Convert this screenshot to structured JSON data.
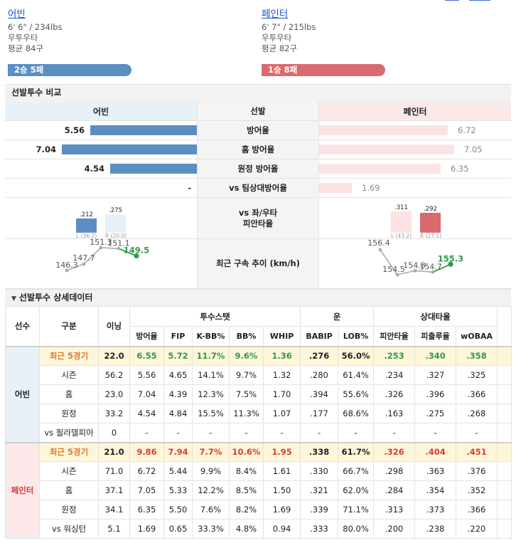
{
  "players": {
    "left": {
      "name": "어빈",
      "size": "6' 6\" / 234lbs",
      "hand": "우투우타",
      "velo": "평균 84구",
      "record": "2승 5패"
    },
    "right": {
      "name": "페인터",
      "size": "6' 7\" / 215lbs",
      "hand": "우투우타",
      "velo": "평균 82구",
      "record": "1승 8패"
    }
  },
  "compare": {
    "title": "선발투수 비교",
    "header": {
      "left": "어빈",
      "mid": "선발",
      "right": "페인터"
    },
    "rows": [
      {
        "label": "방어율",
        "left": "5.56",
        "right": "6.72",
        "lv": 5.56,
        "rv": 6.72
      },
      {
        "label": "홈 방어율",
        "left": "7.04",
        "right": "7.05",
        "lv": 7.04,
        "rv": 7.05
      },
      {
        "label": "원정 방어율",
        "left": "4.54",
        "right": "6.35",
        "lv": 4.54,
        "rv": 6.35
      },
      {
        "label": "vs 팀상대방어율",
        "left": "-",
        "right": "1.69",
        "lv": 0,
        "rv": 1.69
      }
    ],
    "split_label": "vs 좌/우타\n피안타율",
    "split": {
      "left": {
        "L": {
          "avg": ".212",
          "sub": "L (36.2)"
        },
        "R": {
          "avg": ".275",
          "sub": "R (20.0)"
        },
        "Lv": 0.212,
        "Rv": 0.275
      },
      "right": {
        "L": {
          "avg": ".311",
          "sub": "L (43.2)"
        },
        "R": {
          "avg": ".292",
          "sub": "R (27.1)"
        },
        "Lv": 0.311,
        "Rv": 0.292
      }
    },
    "velo_label": "최근 구속 추이 (km/h)",
    "velo": {
      "left": [
        "146.3",
        "147.7",
        "151.3",
        "151.1",
        "149.5"
      ],
      "right": [
        "156.4",
        "154.5",
        "154.8",
        "154.7",
        "155.3"
      ]
    }
  },
  "detail": {
    "title": "선발투수 상세데이터",
    "col_player": "선수",
    "col_type": "구분",
    "col_ip": "이닝",
    "groups": [
      "투수스탯",
      "운",
      "상대타율"
    ],
    "cols": [
      "방어율",
      "FIP",
      "K-BB%",
      "BB%",
      "WHIP",
      "BABIP",
      "LOB%",
      "피안타율",
      "피출루율",
      "wOBAA"
    ],
    "left": {
      "name": "어빈",
      "rows": [
        [
          "최근 5경기",
          "22.0",
          "6.55",
          "5.72",
          "11.7%",
          "9.6%",
          "1.36",
          ".276",
          "56.0%",
          ".253",
          ".340",
          ".358"
        ],
        [
          "시즌",
          "56.2",
          "5.56",
          "4.65",
          "14.1%",
          "9.7%",
          "1.32",
          ".280",
          "61.4%",
          ".234",
          ".327",
          ".325"
        ],
        [
          "홈",
          "23.0",
          "7.04",
          "4.39",
          "12.3%",
          "7.5%",
          "1.70",
          ".394",
          "55.6%",
          ".326",
          ".396",
          ".366"
        ],
        [
          "원정",
          "33.2",
          "4.54",
          "4.84",
          "15.5%",
          "11.3%",
          "1.07",
          ".177",
          "68.6%",
          ".163",
          ".275",
          ".268"
        ],
        [
          "vs 필라델피아",
          "0",
          "-",
          "-",
          "-",
          "-",
          "-",
          "-",
          "-",
          "-",
          "-",
          "-"
        ]
      ]
    },
    "right": {
      "name": "페인터",
      "rows": [
        [
          "최근 5경기",
          "21.0",
          "9.86",
          "7.94",
          "7.7%",
          "10.6%",
          "1.95",
          ".338",
          "61.7%",
          ".326",
          ".404",
          ".451"
        ],
        [
          "시즌",
          "71.0",
          "6.72",
          "5.44",
          "9.9%",
          "8.4%",
          "1.61",
          ".330",
          "66.7%",
          ".298",
          ".363",
          ".376"
        ],
        [
          "홈",
          "37.1",
          "7.05",
          "5.33",
          "12.2%",
          "8.5%",
          "1.50",
          ".321",
          "62.0%",
          ".284",
          ".354",
          ".352"
        ],
        [
          "원정",
          "34.1",
          "6.35",
          "5.50",
          "7.6%",
          "8.2%",
          "1.69",
          ".339",
          "71.1%",
          ".313",
          ".373",
          ".366"
        ],
        [
          "vs 워싱턴",
          "5.1",
          "1.69",
          "0.65",
          "33.3%",
          "4.8%",
          "0.94",
          ".333",
          "80.0%",
          ".200",
          ".238",
          ".220"
        ]
      ]
    }
  },
  "colors": {
    "blue": "#5b8fc4",
    "red": "#d96b6e",
    "green": "#2f9a4a",
    "orange": "#e0782a",
    "hl": "#e03b2f"
  }
}
